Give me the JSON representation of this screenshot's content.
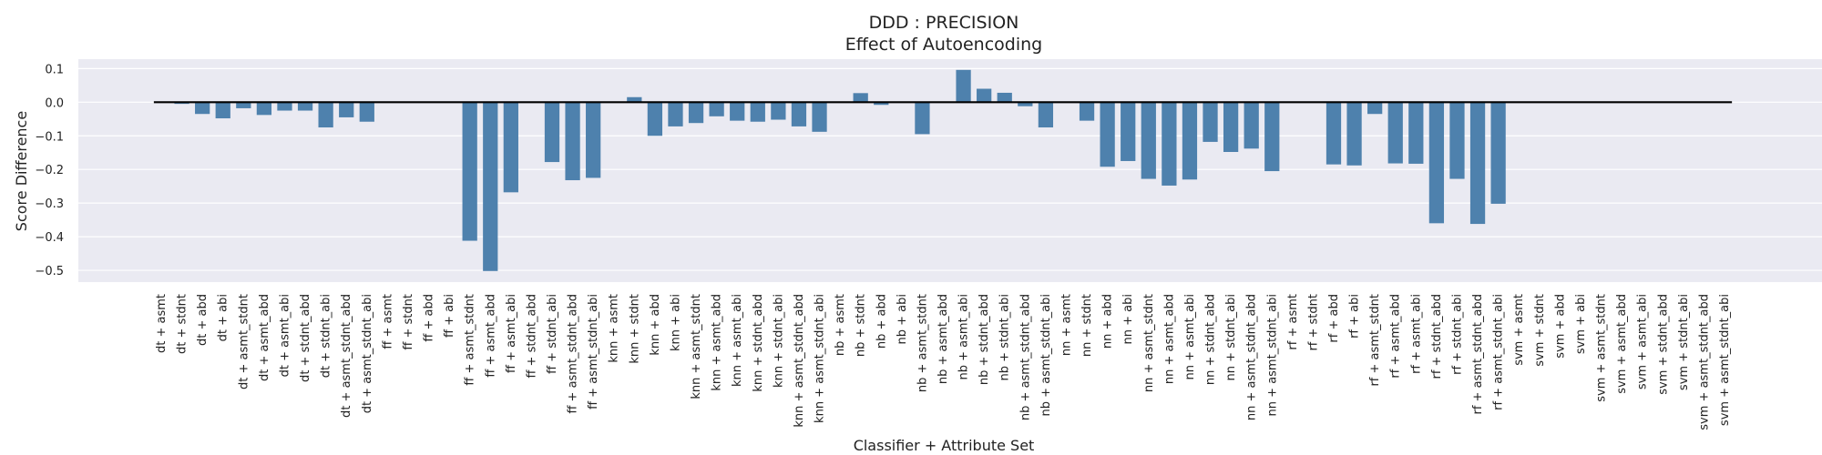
{
  "chart_data": {
    "type": "bar",
    "title": "DDD : PRECISION",
    "subtitle": "Effect of Autoencoding",
    "xlabel": "Classifier + Attribute Set",
    "ylabel": "Score Difference",
    "ylim": [
      -0.535,
      0.128
    ],
    "yticks": [
      0.1,
      0.0,
      -0.1,
      -0.2,
      -0.3,
      -0.4,
      -0.5
    ],
    "ytick_labels": [
      "0.1",
      "0.0",
      "−0.1",
      "−0.2",
      "−0.3",
      "−0.4",
      "−0.5"
    ],
    "grid": true,
    "reference_line": 0.0,
    "colors": {
      "bar": "#4e81ad",
      "background": "#eaeaf2",
      "grid": "#ffffff",
      "zero_line": "#000000"
    },
    "categories": [
      "dt + asmt",
      "dt + stdnt",
      "dt + abd",
      "dt + abi",
      "dt + asmt_stdnt",
      "dt + asmt_abd",
      "dt + asmt_abi",
      "dt + stdnt_abd",
      "dt + stdnt_abi",
      "dt + asmt_stdnt_abd",
      "dt + asmt_stdnt_abi",
      "ff + asmt",
      "ff + stdnt",
      "ff + abd",
      "ff + abi",
      "ff + asmt_stdnt",
      "ff + asmt_abd",
      "ff + asmt_abi",
      "ff + stdnt_abd",
      "ff + stdnt_abi",
      "ff + asmt_stdnt_abd",
      "ff + asmt_stdnt_abi",
      "knn + asmt",
      "knn + stdnt",
      "knn + abd",
      "knn + abi",
      "knn + asmt_stdnt",
      "knn + asmt_abd",
      "knn + asmt_abi",
      "knn + stdnt_abd",
      "knn + stdnt_abi",
      "knn + asmt_stdnt_abd",
      "knn + asmt_stdnt_abi",
      "nb + asmt",
      "nb + stdnt",
      "nb + abd",
      "nb + abi",
      "nb + asmt_stdnt",
      "nb + asmt_abd",
      "nb + asmt_abi",
      "nb + stdnt_abd",
      "nb + stdnt_abi",
      "nb + asmt_stdnt_abd",
      "nb + asmt_stdnt_abi",
      "nn + asmt",
      "nn + stdnt",
      "nn + abd",
      "nn + abi",
      "nn + asmt_stdnt",
      "nn + asmt_abd",
      "nn + asmt_abi",
      "nn + stdnt_abd",
      "nn + stdnt_abi",
      "nn + asmt_stdnt_abd",
      "nn + asmt_stdnt_abi",
      "rf + asmt",
      "rf + stdnt",
      "rf + abd",
      "rf + abi",
      "rf + asmt_stdnt",
      "rf + asmt_abd",
      "rf + asmt_abi",
      "rf + stdnt_abd",
      "rf + stdnt_abi",
      "rf + asmt_stdnt_abd",
      "rf + asmt_stdnt_abi",
      "svm + asmt",
      "svm + stdnt",
      "svm + abd",
      "svm + abi",
      "svm + asmt_stdnt",
      "svm + asmt_abd",
      "svm + asmt_abi",
      "svm + stdnt_abd",
      "svm + stdnt_abi",
      "svm + asmt_stdnt_abd",
      "svm + asmt_stdnt_abi"
    ],
    "values": [
      0.0,
      -0.005,
      -0.035,
      -0.048,
      -0.018,
      -0.038,
      -0.025,
      -0.025,
      -0.075,
      -0.045,
      -0.058,
      0.0,
      0.0,
      0.0,
      0.0,
      -0.412,
      -0.502,
      -0.268,
      0.0,
      -0.178,
      -0.232,
      -0.225,
      0.0,
      0.015,
      -0.1,
      -0.072,
      -0.062,
      -0.042,
      -0.055,
      -0.058,
      -0.052,
      -0.072,
      -0.088,
      0.0,
      0.027,
      -0.008,
      0.0,
      -0.095,
      0.0,
      0.096,
      0.04,
      0.028,
      -0.012,
      -0.075,
      0.0,
      -0.055,
      -0.192,
      -0.175,
      -0.228,
      -0.248,
      -0.23,
      -0.118,
      -0.148,
      -0.138,
      -0.205,
      0.0,
      0.0,
      -0.185,
      -0.188,
      -0.035,
      -0.182,
      -0.183,
      -0.36,
      -0.228,
      -0.362,
      -0.302,
      0.0,
      0.0,
      0.0,
      0.0,
      0.0,
      0.0,
      0.0,
      0.0,
      0.0,
      0.0,
      0.0
    ]
  }
}
